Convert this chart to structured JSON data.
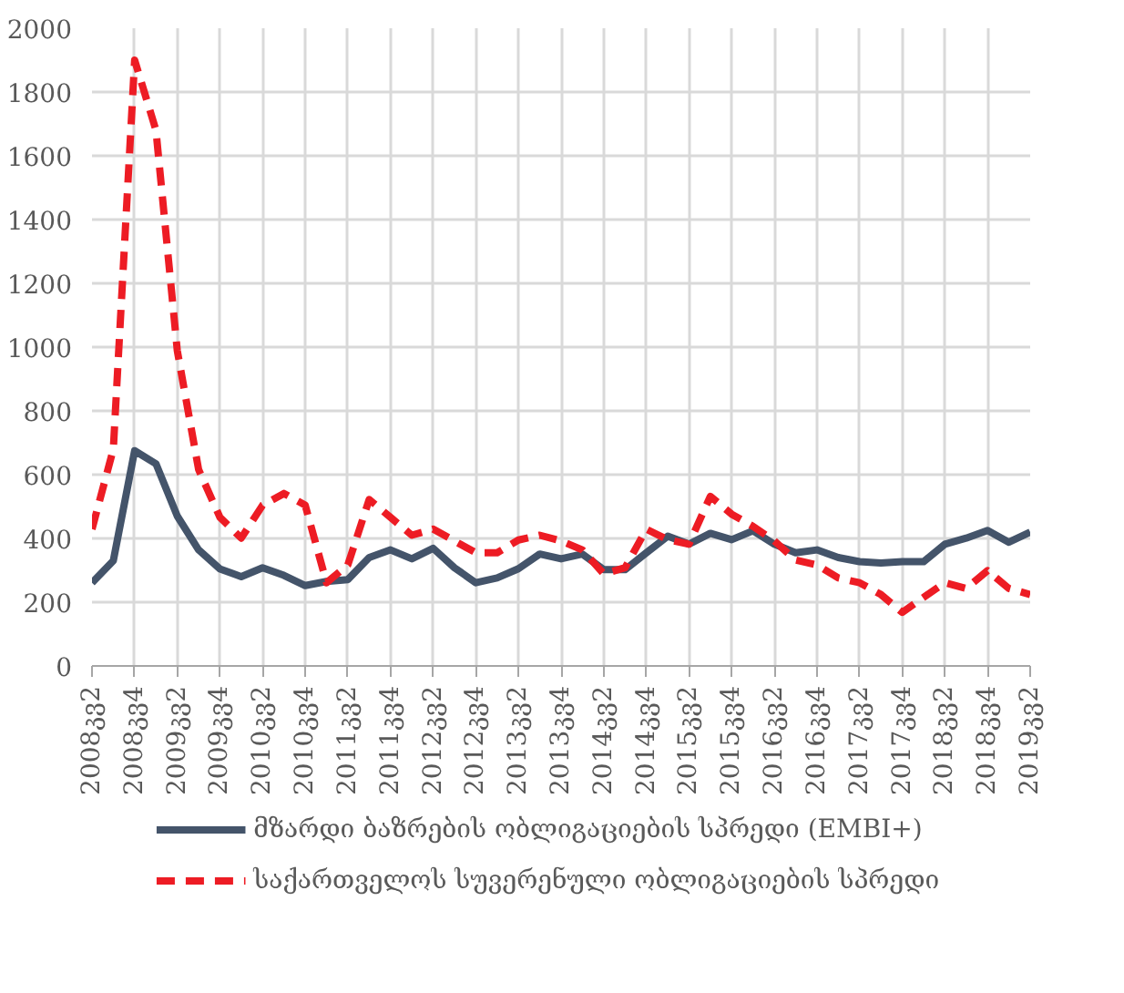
{
  "chart_data": {
    "type": "line",
    "categories": [
      "2008კვ2",
      null,
      "2008კვ4",
      null,
      "2009კვ2",
      null,
      "2009კვ4",
      null,
      "2010კვ2",
      null,
      "2010კვ4",
      null,
      "2011კვ2",
      null,
      "2011კვ4",
      null,
      "2012კვ2",
      null,
      "2012კვ4",
      null,
      "2013კვ2",
      null,
      "2013კვ4",
      null,
      "2014კვ2",
      null,
      "2014კვ4",
      null,
      "2015კვ2",
      null,
      "2015კვ4",
      null,
      "2016კვ2",
      null,
      "2016კვ4",
      null,
      "2017კვ2",
      null,
      "2017კვ4",
      null,
      "2018კვ2",
      null,
      "2018კვ4",
      null,
      "2019კვ2"
    ],
    "ylim": [
      0,
      2000
    ],
    "yticks": [
      0,
      200,
      400,
      600,
      800,
      1000,
      1200,
      1400,
      1600,
      1800,
      2000
    ],
    "grid": true,
    "legend": "bottom",
    "series": [
      {
        "name": "მზარდი ბაზრების ობლიგაციების სპრედი (EMBI+)",
        "color": "#44546a",
        "line_style": "solid",
        "values": [
          261,
          330,
          675,
          634,
          470,
          364,
          304,
          280,
          308,
          284,
          252,
          265,
          271,
          340,
          364,
          336,
          369,
          308,
          261,
          276,
          305,
          351,
          336,
          351,
          302,
          302,
          355,
          407,
          382,
          416,
          396,
          424,
          382,
          355,
          364,
          340,
          327,
          323,
          327,
          327,
          382,
          401,
          425,
          388,
          420
        ]
      },
      {
        "name": "საქართველოს სუვერენული ობლიგაციების სპრედი",
        "color": "#ed1c24",
        "line_style": "dashed",
        "values": [
          429,
          680,
          1900,
          1680,
          989,
          616,
          466,
          401,
          504,
          541,
          504,
          261,
          317,
          522,
          466,
          410,
          429,
          392,
          355,
          355,
          395,
          410,
          392,
          364,
          289,
          308,
          429,
          396,
          382,
          532,
          476,
          438,
          392,
          332,
          317,
          276,
          261,
          224,
          168,
          215,
          261,
          243,
          299,
          243,
          224
        ]
      }
    ]
  }
}
